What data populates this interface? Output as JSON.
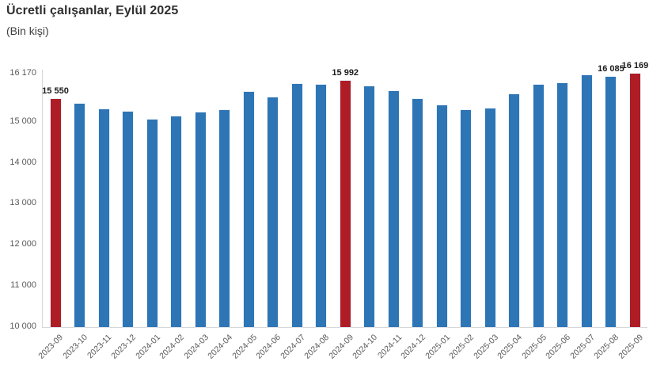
{
  "header": {
    "title": "Ücretli çalışanlar, Eylül 2025",
    "subtitle": "(Bin kişi)"
  },
  "chart_data": {
    "type": "bar",
    "title": "Ücretli çalışanlar, Eylül 2025",
    "subtitle": "(Bin kişi)",
    "xlabel": "",
    "ylabel": "Bin kişi",
    "ylim": [
      10000,
      16170
    ],
    "grid": false,
    "legend": false,
    "categories": [
      "2023-09",
      "2023-10",
      "2023-11",
      "2023-12",
      "2024-01",
      "2024-02",
      "2024-03",
      "2024-04",
      "2024-05",
      "2024-06",
      "2024-07",
      "2024-08",
      "2024-09",
      "2024-10",
      "2024-11",
      "2024-12",
      "2025-01",
      "2025-02",
      "2025-03",
      "2025-04",
      "2025-05",
      "2025-06",
      "2025-07",
      "2025-08",
      "2025-09"
    ],
    "values": [
      15550,
      15445,
      15300,
      15235,
      15060,
      15135,
      15220,
      15280,
      15720,
      15600,
      15910,
      15895,
      15992,
      15860,
      15740,
      15560,
      15400,
      15290,
      15315,
      15675,
      15895,
      15935,
      16130,
      16085,
      16169
    ],
    "highlight_indices": [
      0,
      12,
      24
    ],
    "data_labels": {
      "0": "15 550",
      "12": "15 992",
      "23": "16 085",
      "24": "16 169"
    },
    "y_ticks": [
      {
        "label": "16 170",
        "value": 16170
      },
      {
        "label": "15 000",
        "value": 15000
      },
      {
        "label": "14 000",
        "value": 14000
      },
      {
        "label": "13 000",
        "value": 13000
      },
      {
        "label": "12 000",
        "value": 12000
      },
      {
        "label": "11 000",
        "value": 11000
      },
      {
        "label": "10 000",
        "value": 10000
      }
    ],
    "colors": {
      "bar": "#2E75B6",
      "highlight": "#AE1C26",
      "axis_line": "#D6D6D6",
      "tick_label": "#595959",
      "data_label": "#1A1A1A",
      "title": "#2F2F2F"
    }
  }
}
